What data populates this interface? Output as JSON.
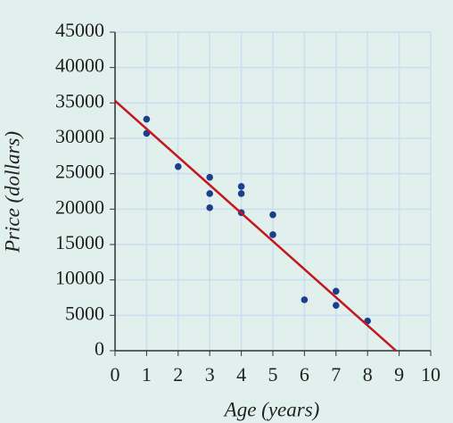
{
  "chart_data": {
    "type": "scatter",
    "x_label": "Age (years)",
    "y_label": "Price (dollars)",
    "x": [
      1,
      1,
      2,
      3,
      3,
      3,
      4,
      4,
      4,
      5,
      5,
      6,
      7,
      7,
      8
    ],
    "values": [
      32700,
      30700,
      26000,
      24500,
      22200,
      20200,
      23200,
      22200,
      19500,
      19200,
      16400,
      7200,
      8400,
      6400,
      4200
    ],
    "color": "#1c3f8c",
    "trend_line": {
      "x": [
        0,
        8.9
      ],
      "values": [
        35300,
        0
      ],
      "color": "#c4161c"
    },
    "xlim": [
      0,
      10
    ],
    "xticks": [
      0,
      1,
      2,
      3,
      4,
      5,
      6,
      7,
      8,
      9,
      10
    ],
    "ylim": [
      0,
      45000
    ],
    "yticks": [
      0,
      5000,
      10000,
      15000,
      20000,
      25000,
      30000,
      35000,
      40000,
      45000
    ],
    "grid": true
  }
}
